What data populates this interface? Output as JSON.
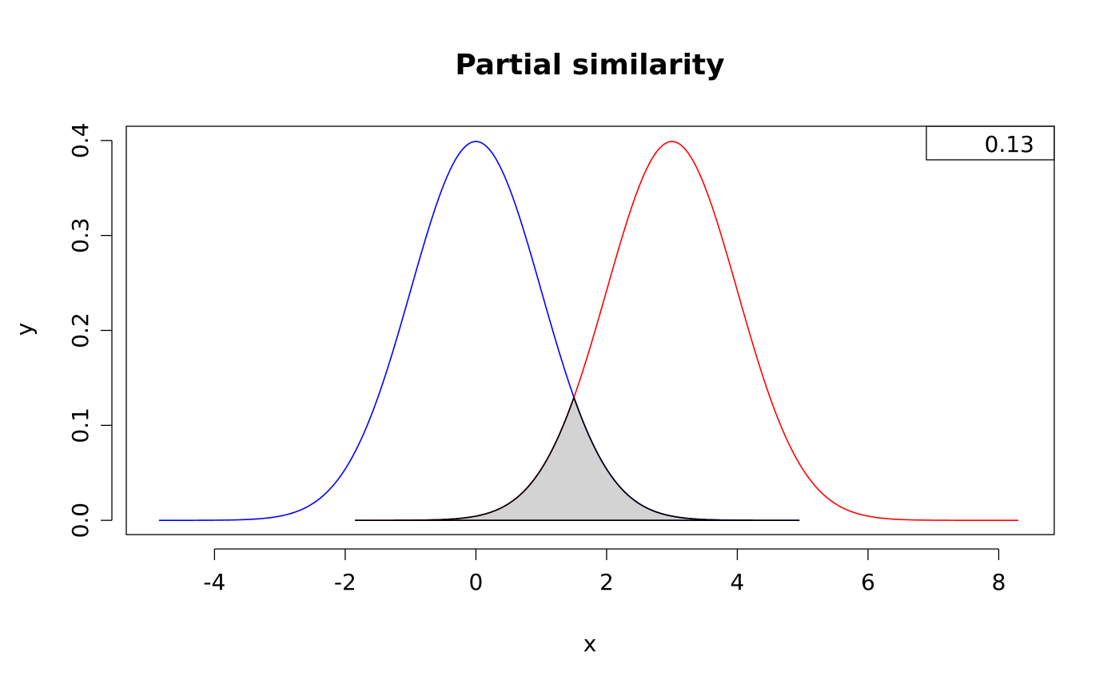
{
  "chart_data": {
    "type": "line",
    "title": "Partial similarity",
    "xlabel": "x",
    "ylabel": "y",
    "xlim": [
      -5.35,
      8.85
    ],
    "ylim": [
      -0.015,
      0.415
    ],
    "x_ticks": [
      -4,
      -2,
      0,
      2,
      4,
      6,
      8
    ],
    "x_tick_labels": [
      "-4",
      "-2",
      "0",
      "2",
      "4",
      "6",
      "8"
    ],
    "y_ticks": [
      0.0,
      0.1,
      0.2,
      0.3,
      0.4
    ],
    "y_tick_labels": [
      "0.0",
      "0.1",
      "0.2",
      "0.3",
      "0.4"
    ],
    "grid": false,
    "legend_position": "top-right",
    "legend_text": "0.13",
    "series": [
      {
        "color": "#0000ff",
        "distribution": "normal",
        "mean": 0,
        "sd": 1,
        "x_range": [
          -4.85,
          4.95
        ]
      },
      {
        "color": "#ff0000",
        "distribution": "normal",
        "mean": 3,
        "sd": 1,
        "x_range": [
          -1.85,
          8.3
        ]
      }
    ],
    "overlap": {
      "fill": "#d3d3d3",
      "stroke": "#000000",
      "x_range": [
        -1.85,
        4.95
      ],
      "peak": {
        "x": 1.5,
        "y": 0.13
      }
    }
  }
}
